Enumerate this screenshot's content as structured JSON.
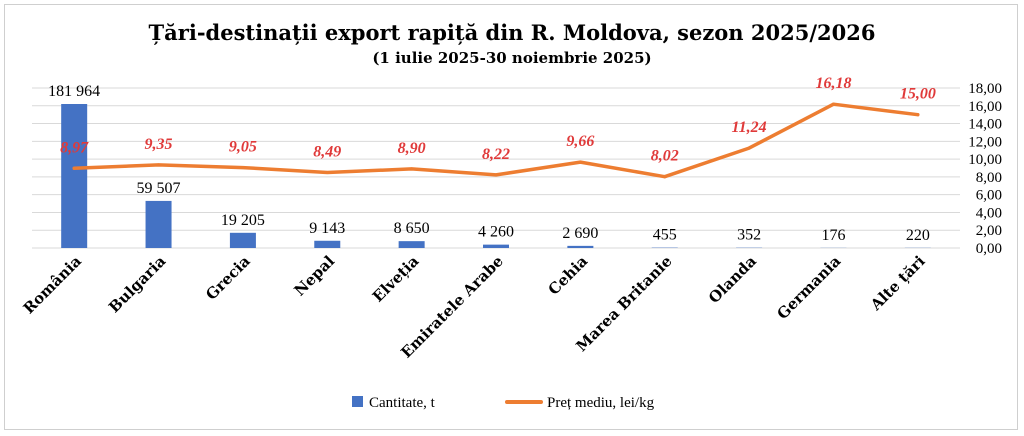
{
  "chart_data": {
    "type": "bar+line",
    "title": "Țări-destinații export rapiță din R. Moldova, sezon 2025/2026",
    "subtitle": "(1 iulie 2025-30 noiembrie 2025)",
    "categories": [
      "România",
      "Bulgaria",
      "Grecia",
      "Nepal",
      "Elveția",
      "Emiratele Arabe",
      "Cehia",
      "Marea Britanie",
      "Olanda",
      "Germania",
      "Alte țări"
    ],
    "series": [
      {
        "name": "Cantitate, t",
        "type": "bar",
        "axis": "left",
        "color": "#4472C4",
        "values": [
          181964,
          59507,
          19205,
          9143,
          8650,
          4260,
          2690,
          455,
          352,
          176,
          220
        ],
        "labels": [
          "181 964",
          "59 507",
          "19 205",
          "9 143",
          "8 650",
          "4 260",
          "2 690",
          "455",
          "352",
          "176",
          "220"
        ]
      },
      {
        "name": "Preț mediu, lei/kg",
        "type": "line",
        "axis": "right",
        "color": "#ED7D31",
        "values": [
          8.97,
          9.35,
          9.05,
          8.49,
          8.9,
          8.22,
          9.66,
          8.02,
          11.24,
          16.18,
          15.0
        ],
        "labels": [
          "8,97",
          "9,35",
          "9,05",
          "8,49",
          "8,90",
          "8,22",
          "9,66",
          "8,02",
          "11,24",
          "16,18",
          "15,00"
        ]
      }
    ],
    "left_axis": {
      "min": 0,
      "max": 181964,
      "visible": false
    },
    "right_axis": {
      "min": 0,
      "max": 18,
      "ticks": [
        "0,00",
        "2,00",
        "4,00",
        "6,00",
        "8,00",
        "10,00",
        "12,00",
        "14,00",
        "16,00",
        "18,00"
      ]
    },
    "label_color": "#E03A3A",
    "grid": true,
    "legend_position": "bottom"
  }
}
